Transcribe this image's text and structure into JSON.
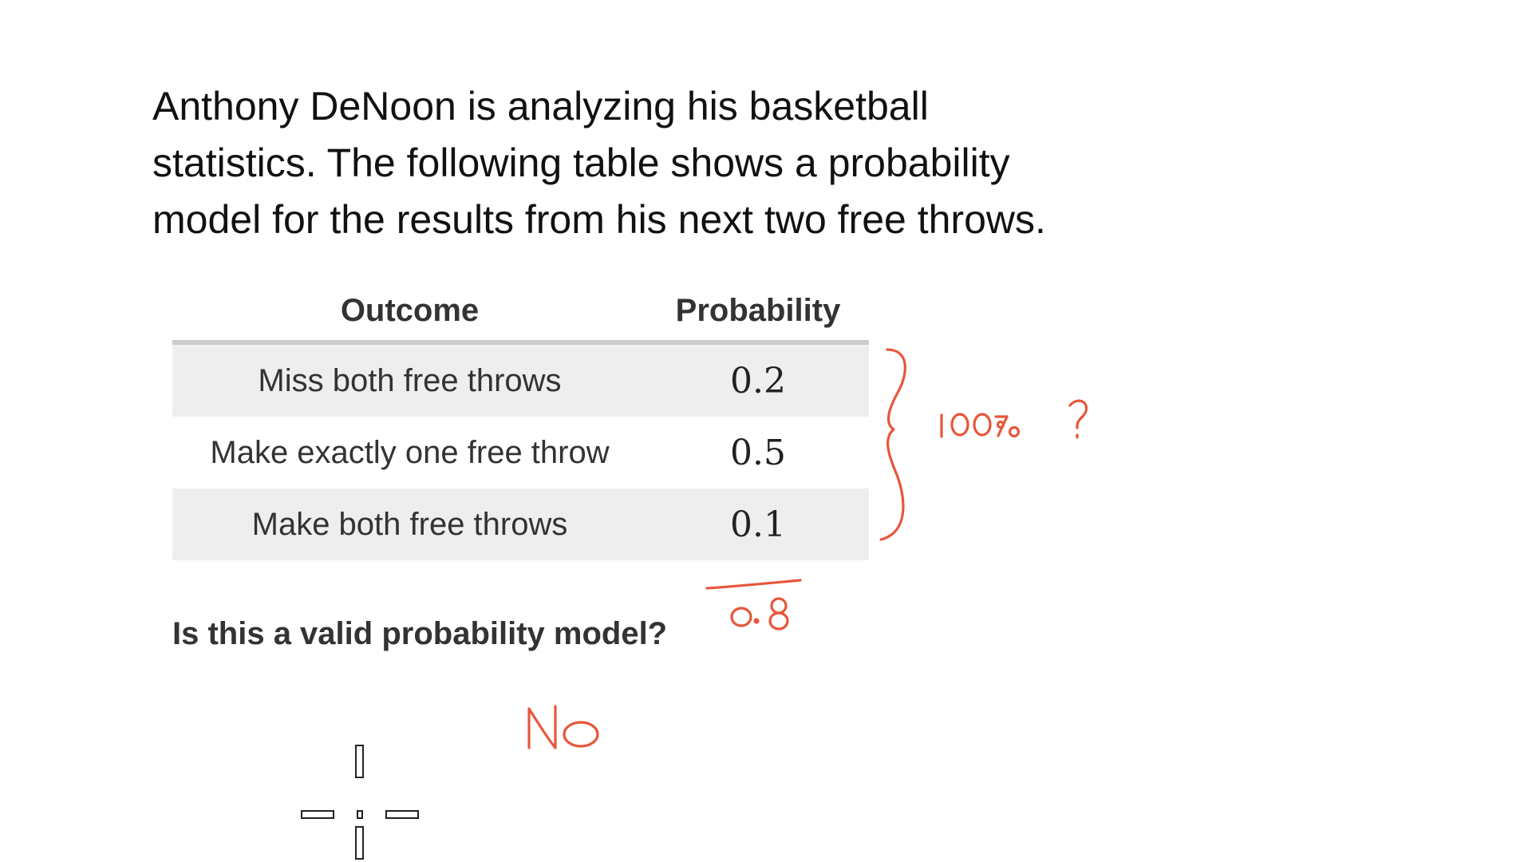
{
  "problem": {
    "lines": [
      "Anthony DeNoon  is analyzing his basketball",
      "statistics. The following table shows a probability",
      "model for the results from his next two free throws."
    ]
  },
  "table": {
    "headers": [
      "Outcome",
      "Probability"
    ],
    "rows": [
      {
        "outcome": "Miss both free throws",
        "probability": "0.2"
      },
      {
        "outcome": "Make exactly one free throw",
        "probability": "0.5"
      },
      {
        "outcome": "Make both free throws",
        "probability": "0.1"
      }
    ]
  },
  "question": "Is this a valid probability model?",
  "annotations": {
    "ink_color": "#e8563a",
    "percent_note": "100%?",
    "sum": "0.8",
    "answer": "No"
  },
  "cursor": {
    "icon": "crosshair-cursor-icon"
  }
}
